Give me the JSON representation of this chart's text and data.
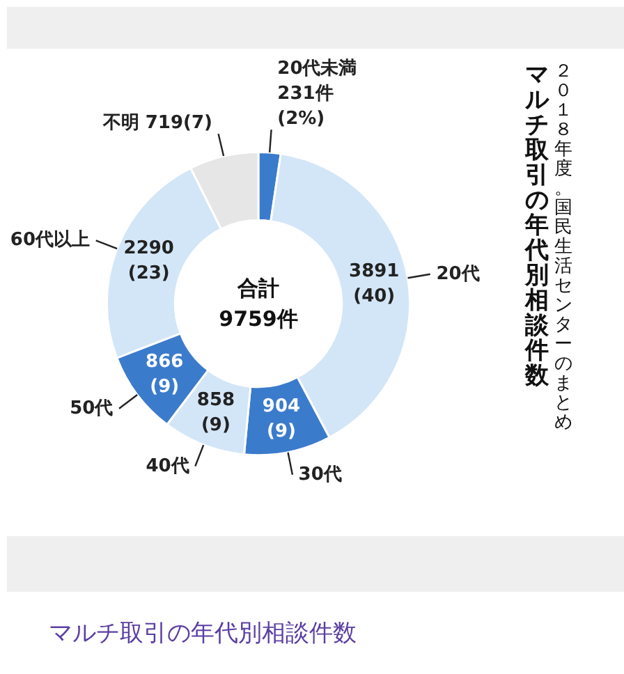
{
  "chart_data": {
    "type": "donut",
    "title": "マルチ取引の年代別相談件数",
    "subtitle": "２０１８年度。国民生活センターのまとめ",
    "categories": [
      "20代未満",
      "20代",
      "30代",
      "40代",
      "50代",
      "60代以上",
      "不明"
    ],
    "values": [
      231,
      3891,
      904,
      858,
      866,
      2290,
      719
    ],
    "colors": [
      "#3b7bcb",
      "#d3e6f7",
      "#3b7bcb",
      "#d3e6f7",
      "#3b7bcb",
      "#d3e6f7",
      "#e6e6e6"
    ],
    "value_labels": [
      "231件\n(2%)",
      "3891\n(40)",
      "904\n(9)",
      "858\n(9)",
      "866\n(9)",
      "2290\n(23)",
      "719(7)"
    ],
    "annotations": [
      "合計\n9759件",
      "マルチ取引の年代別相談件数"
    ]
  }
}
